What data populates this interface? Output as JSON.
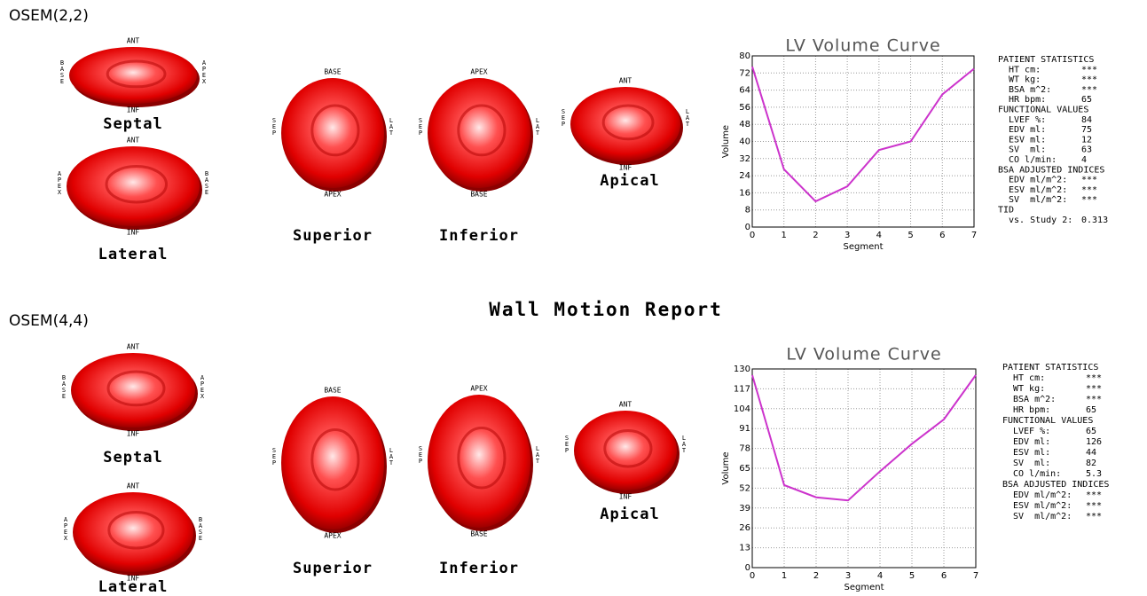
{
  "title": "Wall Motion Report",
  "panels": [
    {
      "name": "OSEM(2,2)",
      "views": [
        {
          "name": "Septal",
          "top": "ANT",
          "bottom": "INF",
          "left": "BASE",
          "right": "APEX"
        },
        {
          "name": "Lateral",
          "top": "ANT",
          "bottom": "INF",
          "left": "APEX",
          "right": "BASE"
        },
        {
          "name": "Superior",
          "top": "BASE",
          "bottom": "APEX",
          "left": "SEP",
          "right": "LAT"
        },
        {
          "name": "Inferior",
          "top": "APEX",
          "bottom": "BASE",
          "left": "SEP",
          "right": "LAT"
        },
        {
          "name": "Apical",
          "top": "ANT",
          "bottom": "INF",
          "left": "SEP",
          "right": "LAT"
        }
      ],
      "chart": {
        "type": "line",
        "title": "LV Volume Curve",
        "x_label": "Segment",
        "y_label": "Volume",
        "x": [
          0,
          1,
          2,
          3,
          4,
          5,
          6,
          7
        ],
        "values": [
          75,
          27,
          12,
          19,
          36,
          40,
          62,
          74
        ],
        "color": "#cc33cc",
        "xlim": [
          0,
          7
        ],
        "xticks": [
          0,
          1,
          2,
          3,
          4,
          5,
          6,
          7
        ],
        "ylim": [
          0,
          80
        ],
        "yticks": [
          0,
          8,
          16,
          24,
          32,
          40,
          48,
          56,
          64,
          72,
          80
        ],
        "grid": true
      },
      "stats": [
        {
          "text": "PATIENT STATISTICS"
        },
        {
          "label": "HT cm:",
          "value": "***"
        },
        {
          "label": "WT kg:",
          "value": "***"
        },
        {
          "label": "BSA m^2:",
          "value": "***"
        },
        {
          "label": "HR bpm:",
          "value": "65"
        },
        {
          "text": "FUNCTIONAL VALUES"
        },
        {
          "label": "LVEF %:",
          "value": "84"
        },
        {
          "label": "EDV ml:",
          "value": "75"
        },
        {
          "label": "ESV ml:",
          "value": "12"
        },
        {
          "label": "SV  ml:",
          "value": "63"
        },
        {
          "label": "CO l/min:",
          "value": "4"
        },
        {
          "text": "BSA ADJUSTED INDICES"
        },
        {
          "label": "EDV ml/m^2:",
          "value": "***"
        },
        {
          "label": "ESV ml/m^2:",
          "value": "***"
        },
        {
          "label": "SV  ml/m^2:",
          "value": "***"
        },
        {
          "text": "TID"
        },
        {
          "label": "vs. Study 2:",
          "value": "0.313"
        }
      ]
    },
    {
      "name": "OSEM(4,4)",
      "views": [
        {
          "name": "Septal",
          "top": "ANT",
          "bottom": "INF",
          "left": "BASE",
          "right": "APEX"
        },
        {
          "name": "Lateral",
          "top": "ANT",
          "bottom": "INF",
          "left": "APEX",
          "right": "BASE"
        },
        {
          "name": "Superior",
          "top": "BASE",
          "bottom": "APEX",
          "left": "SEP",
          "right": "LAT"
        },
        {
          "name": "Inferior",
          "top": "APEX",
          "bottom": "BASE",
          "left": "SEP",
          "right": "LAT"
        },
        {
          "name": "Apical",
          "top": "ANT",
          "bottom": "INF",
          "left": "SEP",
          "right": "LAT"
        }
      ],
      "chart": {
        "type": "line",
        "title": "LV Volume Curve",
        "x_label": "Segment",
        "y_label": "Volume",
        "x": [
          0,
          1,
          2,
          3,
          4,
          5,
          6,
          7
        ],
        "values": [
          126,
          54,
          46,
          44,
          63,
          81,
          97,
          126
        ],
        "color": "#cc33cc",
        "xlim": [
          0,
          7
        ],
        "xticks": [
          0,
          1,
          2,
          3,
          4,
          5,
          6,
          7
        ],
        "ylim": [
          0,
          130
        ],
        "yticks": [
          0,
          13,
          26,
          39,
          52,
          65,
          78,
          91,
          104,
          117,
          130
        ],
        "grid": true
      },
      "stats": [
        {
          "text": "PATIENT STATISTICS"
        },
        {
          "label": "HT cm:",
          "value": "***"
        },
        {
          "label": "WT kg:",
          "value": "***"
        },
        {
          "label": "BSA m^2:",
          "value": "***"
        },
        {
          "label": "HR bpm:",
          "value": "65"
        },
        {
          "text": "FUNCTIONAL VALUES"
        },
        {
          "label": "LVEF %:",
          "value": "65"
        },
        {
          "label": "EDV ml:",
          "value": "126"
        },
        {
          "label": "ESV ml:",
          "value": "44"
        },
        {
          "label": "SV  ml:",
          "value": "82"
        },
        {
          "label": "CO l/min:",
          "value": "5.3"
        },
        {
          "text": "BSA ADJUSTED INDICES"
        },
        {
          "label": "EDV ml/m^2:",
          "value": "***"
        },
        {
          "label": "ESV ml/m^2:",
          "value": "***"
        },
        {
          "label": "SV  ml/m^2:",
          "value": "***"
        }
      ]
    }
  ]
}
